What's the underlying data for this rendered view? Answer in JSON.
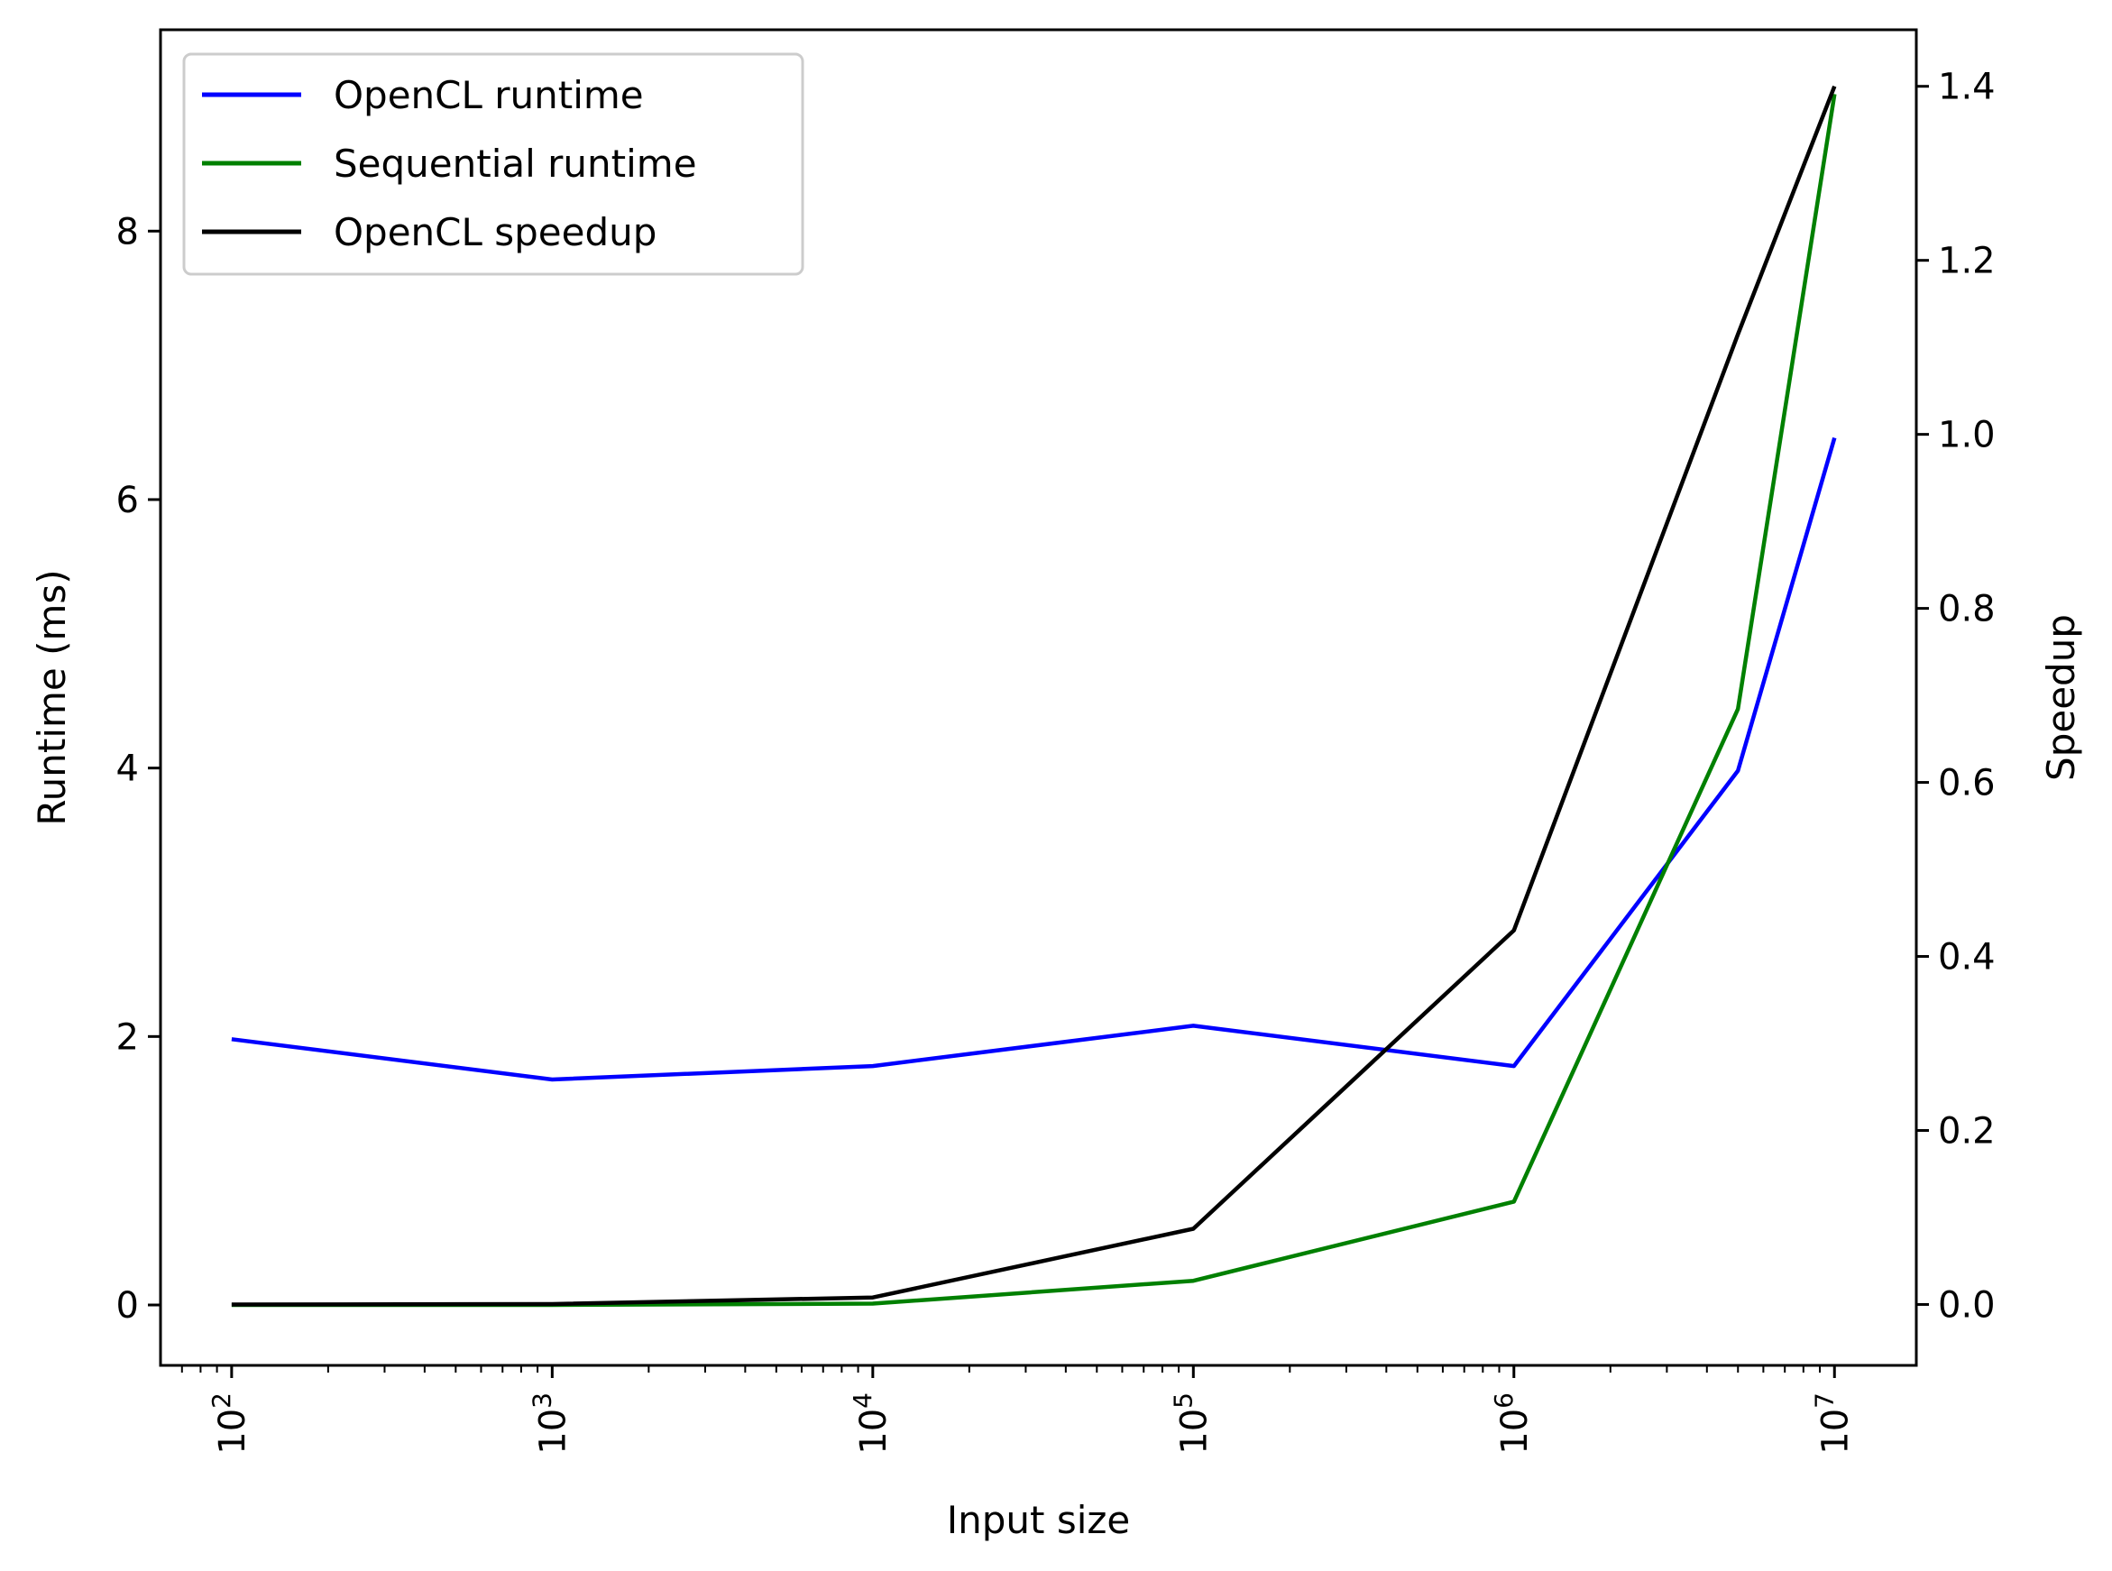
{
  "chart_data": {
    "type": "line",
    "xlabel": "Input size",
    "ylabel": "Runtime (ms)",
    "y2label": "Speedup",
    "xscale": "log",
    "xlim": [
      60,
      18000000
    ],
    "ylim": [
      -0.45,
      9.5
    ],
    "y2lim": [
      -0.07,
      1.465
    ],
    "grid": false,
    "legend_position": "top-left",
    "x_ticks": [
      {
        "value": 100,
        "base": "10",
        "exp": "2"
      },
      {
        "value": 1000,
        "base": "10",
        "exp": "3"
      },
      {
        "value": 10000,
        "base": "10",
        "exp": "4"
      },
      {
        "value": 100000,
        "base": "10",
        "exp": "5"
      },
      {
        "value": 1000000,
        "base": "10",
        "exp": "6"
      },
      {
        "value": 10000000,
        "base": "10",
        "exp": "7"
      }
    ],
    "y_ticks": [
      {
        "value": 0,
        "label": "0"
      },
      {
        "value": 2,
        "label": "2"
      },
      {
        "value": 4,
        "label": "4"
      },
      {
        "value": 6,
        "label": "6"
      },
      {
        "value": 8,
        "label": "8"
      }
    ],
    "y2_ticks": [
      {
        "value": 0.0,
        "label": "0.0"
      },
      {
        "value": 0.2,
        "label": "0.2"
      },
      {
        "value": 0.4,
        "label": "0.4"
      },
      {
        "value": 0.6,
        "label": "0.6"
      },
      {
        "value": 0.8,
        "label": "0.8"
      },
      {
        "value": 1.0,
        "label": "1.0"
      },
      {
        "value": 1.2,
        "label": "1.2"
      },
      {
        "value": 1.4,
        "label": "1.4"
      }
    ],
    "series": [
      {
        "name": "OpenCL runtime",
        "axis": "left",
        "color": "#0000ff",
        "x": [
          100,
          1000,
          10000,
          100000,
          1000000,
          5000000,
          10000000
        ],
        "y": [
          1.98,
          1.68,
          1.78,
          2.08,
          1.78,
          3.98,
          6.46
        ]
      },
      {
        "name": "Sequential runtime",
        "axis": "left",
        "color": "#008000",
        "x": [
          100,
          1000,
          10000,
          100000,
          1000000,
          5000000,
          10000000
        ],
        "y": [
          0.0,
          0.0,
          0.01,
          0.18,
          0.77,
          4.44,
          9.02
        ]
      },
      {
        "name": "OpenCL speedup",
        "axis": "right",
        "color": "#000000",
        "x": [
          100,
          1000,
          10000,
          100000,
          1000000,
          5000000,
          10000000
        ],
        "y": [
          0.0,
          0.0005,
          0.008,
          0.087,
          0.43,
          1.115,
          1.4
        ]
      }
    ]
  }
}
